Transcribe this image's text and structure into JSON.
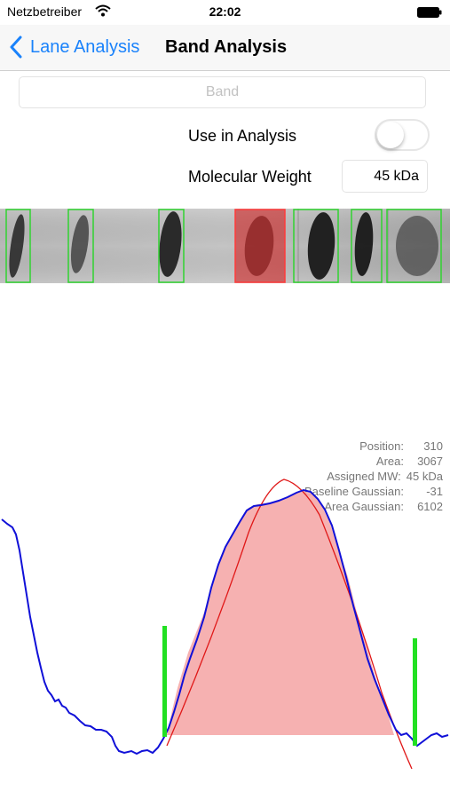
{
  "status": {
    "carrier": "Netzbetreiber",
    "time": "22:02"
  },
  "nav": {
    "back_label": "Lane Analysis",
    "title": "Band Analysis"
  },
  "form": {
    "band_placeholder": "Band",
    "use_in_analysis_label": "Use in Analysis",
    "use_in_analysis_on": false,
    "mw_label": "Molecular Weight",
    "mw_value": "45 kDa"
  },
  "bands": [
    {
      "state": "detected"
    },
    {
      "state": "detected"
    },
    {
      "state": "detected"
    },
    {
      "state": "selected"
    },
    {
      "state": "detected"
    },
    {
      "state": "detected"
    },
    {
      "state": "detected"
    }
  ],
  "info": [
    {
      "label": "Position:",
      "value": "310"
    },
    {
      "label": "Area:",
      "value": "3067"
    },
    {
      "label": "Assigned MW:",
      "value": "45 kDa"
    },
    {
      "label": "Baseline Gaussian:",
      "value": "-31"
    },
    {
      "label": "Area Gaussian:",
      "value": "6102"
    }
  ],
  "colors": {
    "accent": "#1a82fb",
    "profile": "#1010d8",
    "fit": "#e01818",
    "fill": "#f5a9a9",
    "boundary": "#22e022",
    "detected": "#31d331",
    "selected": "#ff3a3a"
  },
  "icons": {
    "back": "chevron-left-icon",
    "wifi": "wifi-icon",
    "battery": "battery-icon"
  }
}
